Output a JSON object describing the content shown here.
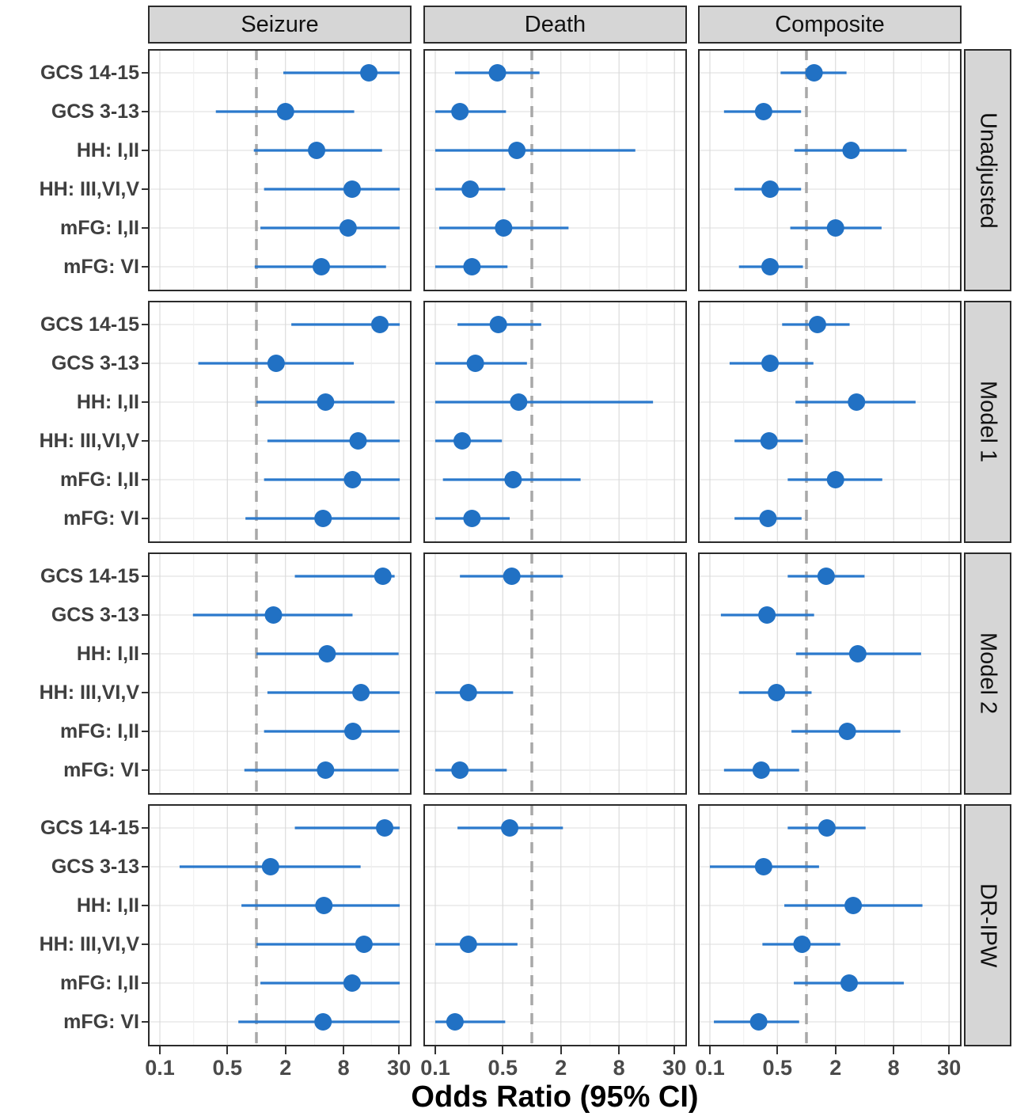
{
  "figure": {
    "xlabel": "Odds Ratio (95% CI)"
  },
  "colors": {
    "point": "#2171c4",
    "ci_line": "#2b79cc",
    "strip_bg": "#d6d6d6",
    "panel_border": "#2b2b2b",
    "grid_major": "#dbdbdb",
    "grid_minor": "#eeeeee",
    "grid_horizontal": "#e4e4e4",
    "reference_line": "#a8a8a8",
    "y_label_text": "#3f3f3f",
    "tick_label_text": "#4a4a4a"
  },
  "chart_data": {
    "type": "scatter",
    "subtype": "forest-plot",
    "title": "",
    "xlabel": "Odds Ratio (95% CI)",
    "x_scale": "log10",
    "x_ticks": [
      0.1,
      0.5,
      2,
      8,
      30
    ],
    "x_tick_labels": [
      "0.1",
      "0.5",
      "2",
      "8",
      "30"
    ],
    "x_minor_gridlines": [
      0.224,
      1,
      4,
      15.5
    ],
    "xlim": [
      0.075,
      40.5
    ],
    "reference_line": 1,
    "legend": "none",
    "facet_columns": [
      "Seizure",
      "Death",
      "Composite"
    ],
    "facet_rows": [
      "Unadjusted",
      "Model 1",
      "Model 2",
      "DR-IPW"
    ],
    "categories": [
      "GCS 14-15",
      "GCS 3-13",
      "HH: I,II",
      "HH: III,VI,V",
      "mFG: I,II",
      "mFG: VI"
    ],
    "panels": [
      {
        "row": "Unadjusted",
        "column": "Seizure",
        "points": [
          {
            "category": "GCS 14-15",
            "or": 14.6,
            "ci_low": 1.9,
            "ci_high": 30.5
          },
          {
            "category": "GCS 3-13",
            "or": 2.0,
            "ci_low": 0.38,
            "ci_high": 10.3
          },
          {
            "category": "HH: I,II",
            "or": 4.2,
            "ci_low": 0.94,
            "ci_high": 20.0
          },
          {
            "category": "HH: III,VI,V",
            "or": 9.8,
            "ci_low": 1.2,
            "ci_high": 30.5
          },
          {
            "category": "mFG: I,II",
            "or": 8.9,
            "ci_low": 1.1,
            "ci_high": 30.5
          },
          {
            "category": "mFG: VI",
            "or": 4.7,
            "ci_low": 0.96,
            "ci_high": 22.0
          }
        ]
      },
      {
        "row": "Unadjusted",
        "column": "Death",
        "points": [
          {
            "category": "GCS 14-15",
            "or": 0.44,
            "ci_low": 0.16,
            "ci_high": 1.2
          },
          {
            "category": "GCS 3-13",
            "or": 0.18,
            "ci_low": 0.1,
            "ci_high": 0.54
          },
          {
            "category": "HH: I,II",
            "or": 0.7,
            "ci_low": 0.1,
            "ci_high": 11.8
          },
          {
            "category": "HH: III,VI,V",
            "or": 0.23,
            "ci_low": 0.1,
            "ci_high": 0.53
          },
          {
            "category": "mFG: I,II",
            "or": 0.51,
            "ci_low": 0.11,
            "ci_high": 2.4
          },
          {
            "category": "mFG: VI",
            "or": 0.24,
            "ci_low": 0.1,
            "ci_high": 0.56
          }
        ]
      },
      {
        "row": "Unadjusted",
        "column": "Composite",
        "points": [
          {
            "category": "GCS 14-15",
            "or": 1.2,
            "ci_low": 0.54,
            "ci_high": 2.6
          },
          {
            "category": "GCS 3-13",
            "or": 0.36,
            "ci_low": 0.14,
            "ci_high": 0.88
          },
          {
            "category": "HH: I,II",
            "or": 2.9,
            "ci_low": 0.75,
            "ci_high": 10.9
          },
          {
            "category": "HH: III,VI,V",
            "or": 0.42,
            "ci_low": 0.18,
            "ci_high": 0.88
          },
          {
            "category": "mFG: I,II",
            "or": 2.0,
            "ci_low": 0.68,
            "ci_high": 6.0
          },
          {
            "category": "mFG: VI",
            "or": 0.42,
            "ci_low": 0.2,
            "ci_high": 0.92
          }
        ]
      },
      {
        "row": "Model 1",
        "column": "Seizure",
        "points": [
          {
            "category": "GCS 14-15",
            "or": 19.0,
            "ci_low": 2.3,
            "ci_high": 30.5
          },
          {
            "category": "GCS 3-13",
            "or": 1.6,
            "ci_low": 0.25,
            "ci_high": 10.2
          },
          {
            "category": "HH: I,II",
            "or": 5.2,
            "ci_low": 1.0,
            "ci_high": 27.0
          },
          {
            "category": "HH: III,VI,V",
            "or": 11.3,
            "ci_low": 1.3,
            "ci_high": 30.5
          },
          {
            "category": "mFG: I,II",
            "or": 9.9,
            "ci_low": 1.2,
            "ci_high": 30.5
          },
          {
            "category": "mFG: VI",
            "or": 4.9,
            "ci_low": 0.77,
            "ci_high": 30.5
          }
        ]
      },
      {
        "row": "Model 1",
        "column": "Death",
        "points": [
          {
            "category": "GCS 14-15",
            "or": 0.45,
            "ci_low": 0.17,
            "ci_high": 1.25
          },
          {
            "category": "GCS 3-13",
            "or": 0.26,
            "ci_low": 0.1,
            "ci_high": 0.89
          },
          {
            "category": "HH: I,II",
            "or": 0.73,
            "ci_low": 0.1,
            "ci_high": 18.0
          },
          {
            "category": "HH: III,VI,V",
            "or": 0.19,
            "ci_low": 0.1,
            "ci_high": 0.49
          },
          {
            "category": "mFG: I,II",
            "or": 0.64,
            "ci_low": 0.12,
            "ci_high": 3.2
          },
          {
            "category": "mFG: VI",
            "or": 0.24,
            "ci_low": 0.1,
            "ci_high": 0.59
          }
        ]
      },
      {
        "row": "Model 1",
        "column": "Composite",
        "points": [
          {
            "category": "GCS 14-15",
            "or": 1.3,
            "ci_low": 0.56,
            "ci_high": 2.8
          },
          {
            "category": "GCS 3-13",
            "or": 0.42,
            "ci_low": 0.16,
            "ci_high": 1.18
          },
          {
            "category": "HH: I,II",
            "or": 3.3,
            "ci_low": 0.77,
            "ci_high": 13.5
          },
          {
            "category": "HH: III,VI,V",
            "or": 0.41,
            "ci_low": 0.18,
            "ci_high": 0.92
          },
          {
            "category": "mFG: I,II",
            "or": 2.0,
            "ci_low": 0.64,
            "ci_high": 6.1
          },
          {
            "category": "mFG: VI",
            "or": 0.4,
            "ci_low": 0.18,
            "ci_high": 0.89
          }
        ]
      },
      {
        "row": "Model 2",
        "column": "Seizure",
        "points": [
          {
            "category": "GCS 14-15",
            "or": 20.4,
            "ci_low": 2.5,
            "ci_high": 27.0
          },
          {
            "category": "GCS 3-13",
            "or": 1.5,
            "ci_low": 0.22,
            "ci_high": 9.9
          },
          {
            "category": "HH: I,II",
            "or": 5.4,
            "ci_low": 1.0,
            "ci_high": 29.7
          },
          {
            "category": "HH: III,VI,V",
            "or": 12.1,
            "ci_low": 1.3,
            "ci_high": 30.5
          },
          {
            "category": "mFG: I,II",
            "or": 10.0,
            "ci_low": 1.2,
            "ci_high": 30.5
          },
          {
            "category": "mFG: VI",
            "or": 5.2,
            "ci_low": 0.75,
            "ci_high": 29.7
          }
        ]
      },
      {
        "row": "Model 2",
        "column": "Death",
        "points": [
          {
            "category": "GCS 14-15",
            "or": 0.62,
            "ci_low": 0.18,
            "ci_high": 2.1
          },
          null,
          null,
          {
            "category": "HH: III,VI,V",
            "or": 0.22,
            "ci_low": 0.1,
            "ci_high": 0.64
          },
          null,
          {
            "category": "mFG: VI",
            "or": 0.18,
            "ci_low": 0.1,
            "ci_high": 0.55
          }
        ]
      },
      {
        "row": "Model 2",
        "column": "Composite",
        "points": [
          {
            "category": "GCS 14-15",
            "or": 1.6,
            "ci_low": 0.64,
            "ci_high": 4.0
          },
          {
            "category": "GCS 3-13",
            "or": 0.39,
            "ci_low": 0.13,
            "ci_high": 1.2
          },
          {
            "category": "HH: I,II",
            "or": 3.4,
            "ci_low": 0.78,
            "ci_high": 15.4
          },
          {
            "category": "HH: III,VI,V",
            "or": 0.49,
            "ci_low": 0.2,
            "ci_high": 1.13
          },
          {
            "category": "mFG: I,II",
            "or": 2.65,
            "ci_low": 0.7,
            "ci_high": 9.4
          },
          {
            "category": "mFG: VI",
            "or": 0.34,
            "ci_low": 0.14,
            "ci_high": 0.84
          }
        ]
      },
      {
        "row": "DR-IPW",
        "column": "Seizure",
        "points": [
          {
            "category": "GCS 14-15",
            "or": 21.3,
            "ci_low": 2.5,
            "ci_high": 30.5
          },
          {
            "category": "GCS 3-13",
            "or": 1.4,
            "ci_low": 0.16,
            "ci_high": 12.0
          },
          {
            "category": "HH: I,II",
            "or": 5.0,
            "ci_low": 0.7,
            "ci_high": 30.5
          },
          {
            "category": "HH: III,VI,V",
            "or": 13.0,
            "ci_low": 1.0,
            "ci_high": 30.5
          },
          {
            "category": "mFG: I,II",
            "or": 9.8,
            "ci_low": 1.1,
            "ci_high": 30.5
          },
          {
            "category": "mFG: VI",
            "or": 4.9,
            "ci_low": 0.65,
            "ci_high": 30.5
          }
        ]
      },
      {
        "row": "DR-IPW",
        "column": "Death",
        "points": [
          {
            "category": "GCS 14-15",
            "or": 0.59,
            "ci_low": 0.17,
            "ci_high": 2.1
          },
          null,
          null,
          {
            "category": "HH: III,VI,V",
            "or": 0.22,
            "ci_low": 0.1,
            "ci_high": 0.71
          },
          null,
          {
            "category": "mFG: VI",
            "or": 0.16,
            "ci_low": 0.1,
            "ci_high": 0.53
          }
        ]
      },
      {
        "row": "DR-IPW",
        "column": "Composite",
        "points": [
          {
            "category": "GCS 14-15",
            "or": 1.63,
            "ci_low": 0.64,
            "ci_high": 4.1
          },
          {
            "category": "GCS 3-13",
            "or": 0.36,
            "ci_low": 0.1,
            "ci_high": 1.35
          },
          {
            "category": "HH: I,II",
            "or": 3.05,
            "ci_low": 0.59,
            "ci_high": 15.9
          },
          {
            "category": "HH: III,VI,V",
            "or": 0.9,
            "ci_low": 0.35,
            "ci_high": 2.24
          },
          {
            "category": "mFG: I,II",
            "or": 2.77,
            "ci_low": 0.74,
            "ci_high": 10.2
          },
          {
            "category": "mFG: VI",
            "or": 0.32,
            "ci_low": 0.11,
            "ci_high": 0.84
          }
        ]
      }
    ]
  }
}
